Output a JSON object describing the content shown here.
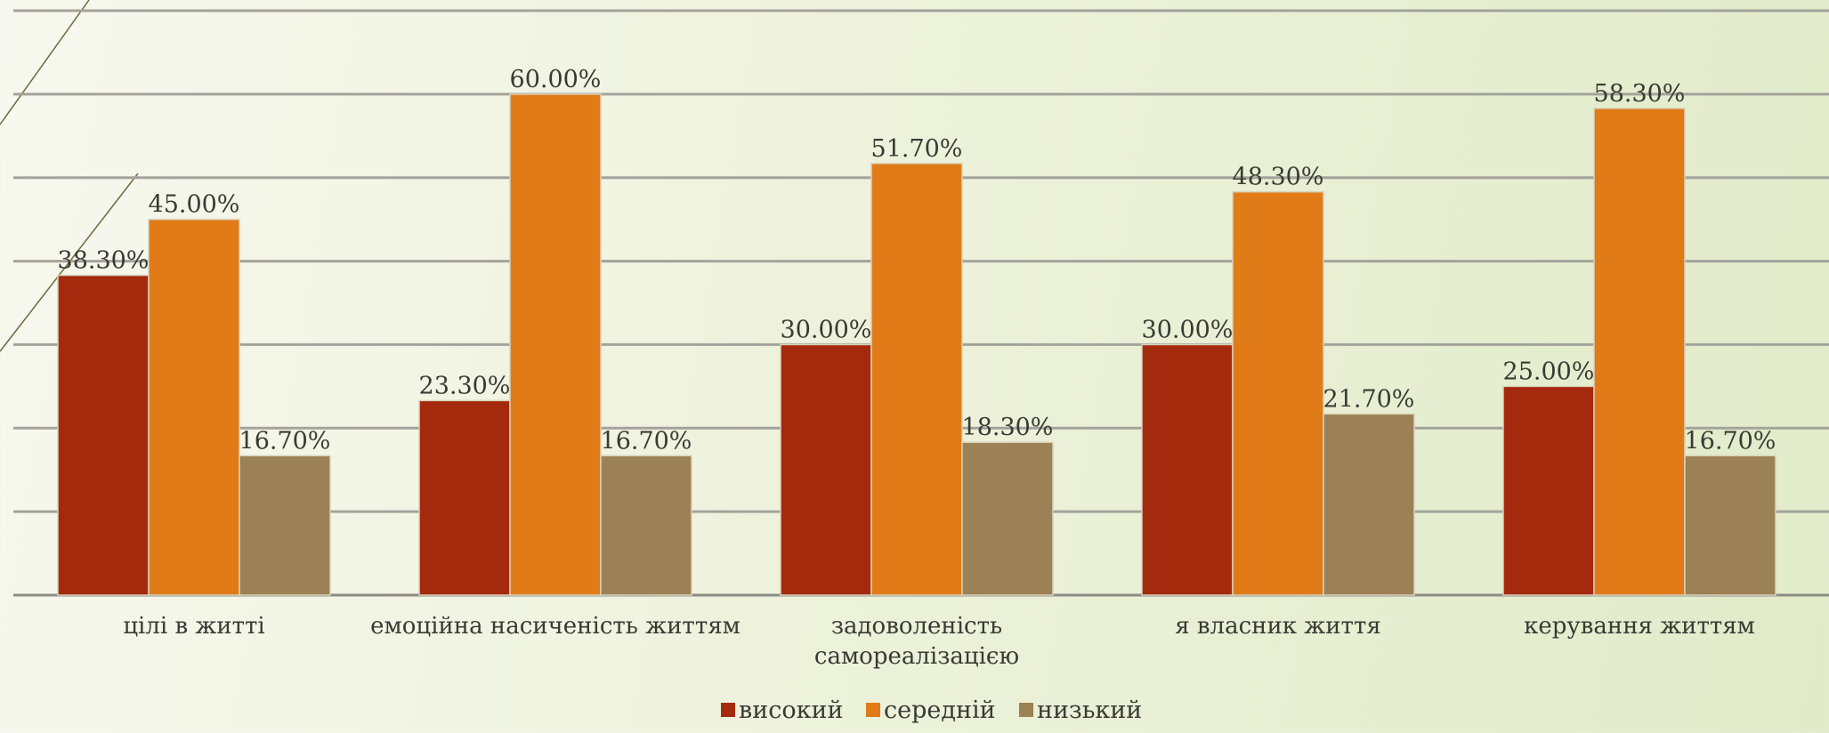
{
  "chart_data": {
    "type": "bar",
    "title": "",
    "xlabel": "",
    "ylabel": "",
    "ylim": [
      0,
      70
    ],
    "grid": true,
    "legend_position": "bottom",
    "categories": [
      [
        "цілі в житті"
      ],
      [
        "емоційна насиченість життям"
      ],
      [
        "задоволеність",
        "самореалізацією"
      ],
      [
        "я власник життя"
      ],
      [
        "керування життям"
      ]
    ],
    "series": [
      {
        "name": "високий",
        "color": "#a52a0d",
        "values": [
          38.3,
          23.3,
          30.0,
          30.0,
          25.0
        ],
        "labels": [
          "38.30%",
          "23.30%",
          "30.00%",
          "30.00%",
          "25.00%"
        ]
      },
      {
        "name": "середній",
        "color": "#e07b17",
        "values": [
          45.0,
          60.0,
          51.7,
          48.3,
          58.3
        ],
        "labels": [
          "45.00%",
          "60.00%",
          "51.70%",
          "48.30%",
          "58.30%"
        ]
      },
      {
        "name": "низький",
        "color": "#9b8155",
        "values": [
          16.7,
          16.7,
          18.3,
          21.7,
          16.7
        ],
        "labels": [
          "16.70%",
          "16.70%",
          "18.30%",
          "21.70%",
          "16.70%"
        ]
      }
    ]
  }
}
